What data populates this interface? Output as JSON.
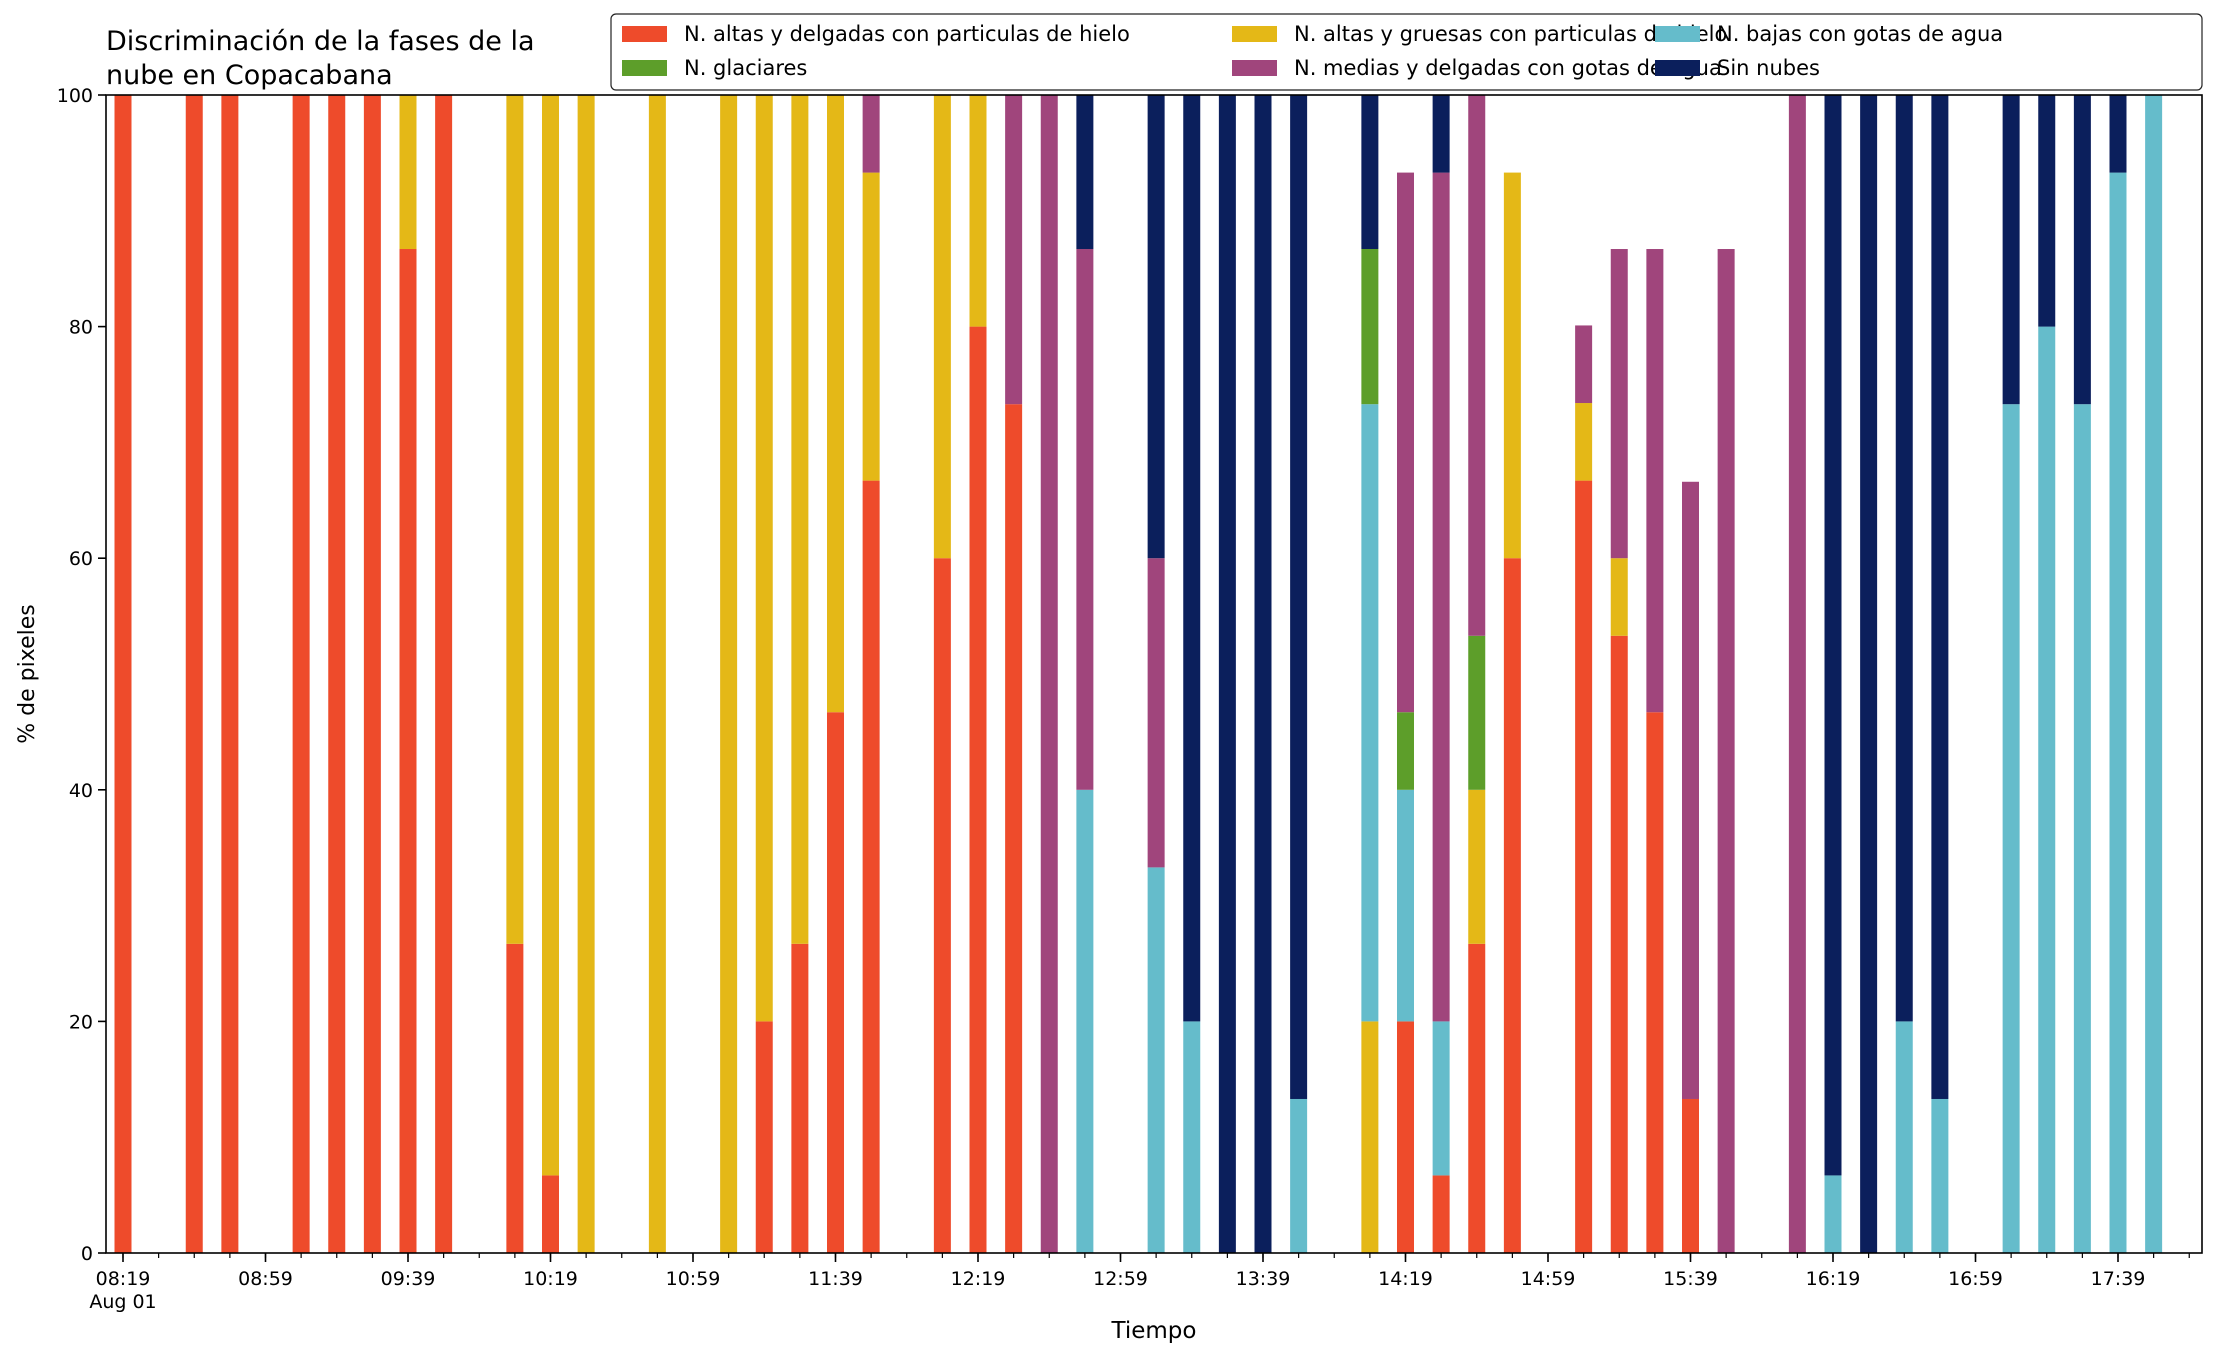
{
  "chart_data": {
    "type": "bar",
    "stacked": true,
    "title": "Discriminación de la fases de la\nnube en Copacabana",
    "xlabel": "Tiempo",
    "ylabel": "% de pixeles",
    "ylim": [
      0,
      100
    ],
    "yticks": [
      0,
      20,
      40,
      60,
      80,
      100
    ],
    "xticks": [
      "08:19\nAug 01",
      "08:59",
      "09:39",
      "10:19",
      "10:59",
      "11:39",
      "12:19",
      "12:59",
      "13:39",
      "14:19",
      "14:59",
      "15:39",
      "16:19",
      "16:59",
      "17:39"
    ],
    "grid": false,
    "legend_position": "top-right",
    "interval_minutes": 10,
    "times": [
      "08:19",
      "08:39",
      "08:49",
      "09:09",
      "09:19",
      "09:29",
      "09:39",
      "09:49",
      "10:09",
      "10:19",
      "10:29",
      "10:49",
      "11:09",
      "11:19",
      "11:29",
      "11:39",
      "11:49",
      "12:09",
      "12:19",
      "12:29",
      "12:39",
      "12:49",
      "13:09",
      "13:19",
      "13:29",
      "13:39",
      "13:49",
      "14:09",
      "14:19",
      "14:29",
      "14:39",
      "14:49",
      "15:09",
      "15:19",
      "15:29",
      "15:39",
      "15:49",
      "16:09",
      "16:19",
      "16:29",
      "16:39",
      "16:49",
      "17:09",
      "17:19",
      "17:29",
      "17:39",
      "17:49"
    ],
    "series": [
      {
        "name": "N. altas y delgadas con particulas de hielo",
        "color": "#ee4b2b",
        "values": [
          100,
          100,
          100,
          100,
          100,
          100,
          86.7,
          100,
          26.7,
          6.7,
          0,
          0,
          0,
          20,
          26.7,
          46.7,
          66.7,
          60,
          80,
          73.3,
          0,
          0,
          0,
          0,
          0,
          0,
          0,
          0,
          20,
          6.7,
          26.7,
          60,
          66.7,
          53.3,
          46.7,
          13.3,
          0,
          0,
          0,
          0,
          0,
          0,
          0,
          0,
          0,
          0,
          0
        ]
      },
      {
        "name": "N. altas y gruesas con particulas de hielo",
        "color": "#e4b817",
        "values": [
          0,
          0,
          0,
          0,
          0,
          0,
          13.3,
          0,
          73.3,
          93.3,
          100,
          100,
          100,
          80,
          73.3,
          53.3,
          26.6,
          40,
          20,
          0,
          0,
          0,
          0,
          0,
          0,
          0,
          0,
          20,
          0,
          0,
          13.3,
          33.3,
          6.7,
          6.7,
          0,
          0,
          0,
          0,
          0,
          0,
          0,
          0,
          0,
          0,
          0,
          0,
          0
        ]
      },
      {
        "name": "N. bajas con gotas de agua",
        "color": "#65bccb",
        "values": [
          0,
          0,
          0,
          0,
          0,
          0,
          0,
          0,
          0,
          0,
          0,
          0,
          0,
          0,
          0,
          0,
          0,
          0,
          0,
          0,
          0,
          40,
          33.3,
          20,
          0,
          0,
          13.3,
          53.3,
          20,
          13.3,
          0,
          0,
          0,
          0,
          0,
          0,
          0,
          0,
          6.7,
          0,
          20,
          13.3,
          73.3,
          80,
          73.3,
          93.3,
          100
        ]
      },
      {
        "name": "N. glaciares",
        "color": "#5d9e2a",
        "values": [
          0,
          0,
          0,
          0,
          0,
          0,
          0,
          0,
          0,
          0,
          0,
          0,
          0,
          0,
          0,
          0,
          0,
          0,
          0,
          0,
          0,
          0,
          0,
          0,
          0,
          0,
          0,
          13.4,
          6.7,
          0,
          13.3,
          0,
          0,
          0,
          0,
          0,
          0,
          0,
          0,
          0,
          0,
          0,
          0,
          0,
          0,
          0,
          0
        ]
      },
      {
        "name": "N. medias y delgadas con gotas de agua",
        "color": "#a0457c",
        "values": [
          0,
          0,
          0,
          0,
          0,
          0,
          0,
          0,
          0,
          0,
          0,
          0,
          0,
          0,
          0,
          0,
          6.7,
          0,
          0,
          26.7,
          100,
          46.7,
          26.7,
          0,
          0,
          0,
          0,
          0,
          46.6,
          73.3,
          46.7,
          0,
          6.7,
          26.7,
          40,
          53.3,
          86.7,
          100,
          0,
          0,
          0,
          0,
          0,
          0,
          0,
          0,
          0
        ]
      },
      {
        "name": "Sin nubes",
        "color": "#0b1f5c",
        "values": [
          0,
          0,
          0,
          0,
          0,
          0,
          0,
          0,
          0,
          0,
          0,
          0,
          0,
          0,
          0,
          0,
          0,
          0,
          0,
          0,
          0,
          13.3,
          40,
          80,
          100,
          100,
          86.7,
          13.3,
          0,
          6.7,
          0,
          0,
          0,
          0,
          0,
          0,
          0,
          0,
          93.3,
          100,
          80,
          86.7,
          26.7,
          20,
          26.7,
          6.7,
          0
        ]
      }
    ]
  }
}
